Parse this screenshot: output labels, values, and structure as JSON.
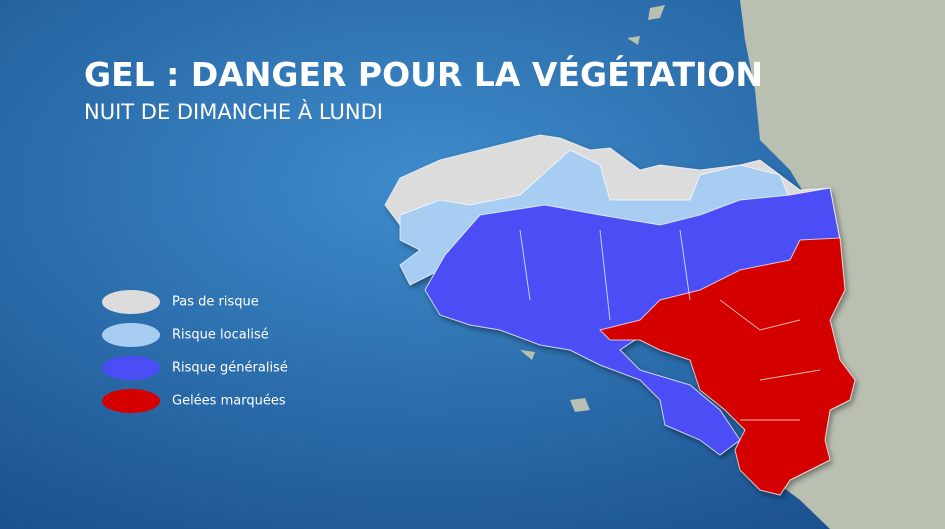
{
  "header": {
    "title": "GEL : DANGER POUR LA VÉGÉTATION",
    "subtitle": "NUIT DE DIMANCHE À LUNDI"
  },
  "legend": {
    "items": [
      {
        "label": "Pas de risque"
      },
      {
        "label": "Risque localisé"
      },
      {
        "label": "Risque généralisé"
      },
      {
        "label": "Gelées marquées"
      }
    ]
  }
}
